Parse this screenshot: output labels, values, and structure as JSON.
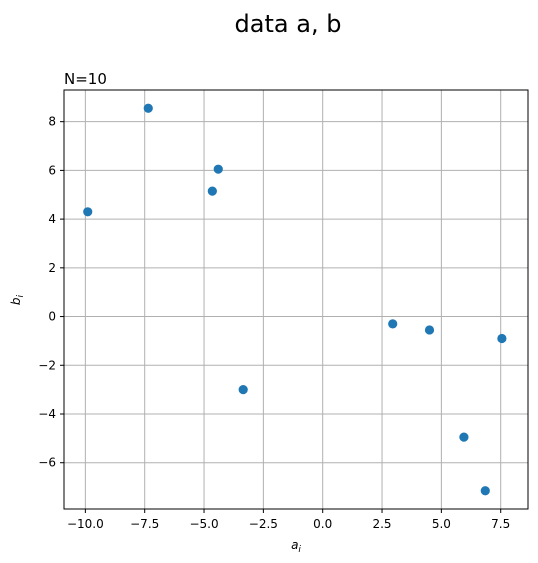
{
  "figure": {
    "suptitle": "data a, b",
    "subtitle": "N=10"
  },
  "chart_data": {
    "type": "scatter",
    "title": "N=10",
    "xlabel": "a",
    "xlabel_sub": "i",
    "ylabel": "b",
    "ylabel_sub": "i",
    "xlim": [
      -10.9,
      8.65
    ],
    "ylim": [
      -7.9,
      9.3
    ],
    "xticks": [
      -10.0,
      -7.5,
      -5.0,
      -2.5,
      0.0,
      2.5,
      5.0,
      7.5
    ],
    "xtick_labels": [
      "−10.0",
      "−7.5",
      "−5.0",
      "−2.5",
      "0.0",
      "2.5",
      "5.0",
      "7.5"
    ],
    "yticks": [
      -6,
      -4,
      -2,
      0,
      2,
      4,
      6,
      8
    ],
    "ytick_labels": [
      "−6",
      "−4",
      "−2",
      "0",
      "2",
      "4",
      "6",
      "8"
    ],
    "grid": true,
    "marker_color": "#1f77b4",
    "points": [
      {
        "x": -9.9,
        "y": 4.3
      },
      {
        "x": -7.35,
        "y": 8.55
      },
      {
        "x": -4.65,
        "y": 5.15
      },
      {
        "x": -4.4,
        "y": 6.05
      },
      {
        "x": -3.35,
        "y": -3.0
      },
      {
        "x": 2.95,
        "y": -0.3
      },
      {
        "x": 4.5,
        "y": -0.55
      },
      {
        "x": 5.95,
        "y": -4.95
      },
      {
        "x": 6.85,
        "y": -7.15
      },
      {
        "x": 7.55,
        "y": -0.9
      }
    ]
  }
}
